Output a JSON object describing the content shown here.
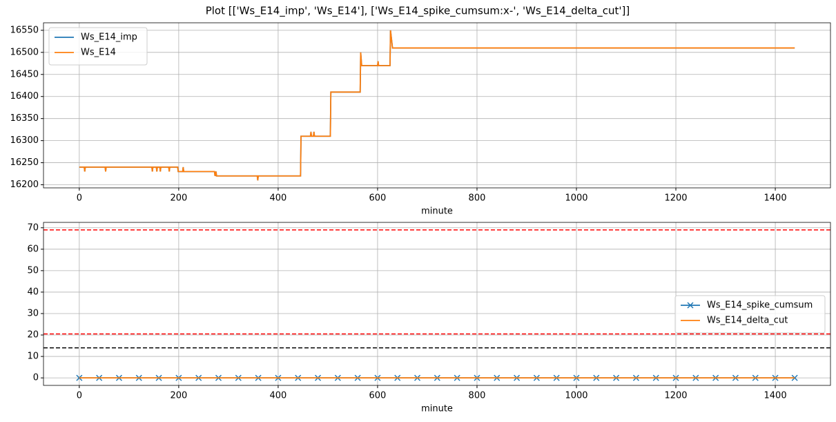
{
  "title": "Plot [['Ws_E14_imp', 'Ws_E14'], ['Ws_E14_spike_cumsum:x-', 'Ws_E14_delta_cut']]",
  "chart_data": [
    {
      "type": "line",
      "x_label": "minute",
      "x": [
        0,
        10,
        11,
        12,
        52,
        53,
        54,
        146,
        147,
        148,
        155,
        156,
        157,
        162,
        163,
        164,
        180,
        181,
        182,
        198,
        199,
        208,
        209,
        210,
        272,
        273,
        275,
        276,
        358,
        359,
        360,
        445,
        446,
        465,
        466,
        467,
        471,
        472,
        473,
        505,
        506,
        565,
        566,
        568,
        600,
        601,
        602,
        625,
        626,
        630,
        1439
      ],
      "series": [
        {
          "name": "Ws_E14_imp",
          "color": "#1f77b4",
          "values": [
            16240,
            16240,
            16230,
            16240,
            16240,
            16230,
            16240,
            16240,
            16230,
            16240,
            16240,
            16230,
            16240,
            16240,
            16230,
            16240,
            16240,
            16230,
            16240,
            16240,
            16230,
            16230,
            16240,
            16230,
            16230,
            16220,
            16230,
            16220,
            16220,
            16210,
            16220,
            16220,
            16310,
            16310,
            16320,
            16310,
            16310,
            16320,
            16310,
            16310,
            16410,
            16410,
            16500,
            16470,
            16470,
            16480,
            16470,
            16470,
            16550,
            16510,
            16510
          ]
        },
        {
          "name": "Ws_E14",
          "color": "#ff7f0e",
          "values": [
            16240,
            16240,
            16230,
            16240,
            16240,
            16230,
            16240,
            16240,
            16230,
            16240,
            16240,
            16230,
            16240,
            16240,
            16230,
            16240,
            16240,
            16230,
            16240,
            16240,
            16230,
            16230,
            16240,
            16230,
            16230,
            16220,
            16230,
            16220,
            16220,
            16210,
            16220,
            16220,
            16310,
            16310,
            16320,
            16310,
            16310,
            16320,
            16310,
            16310,
            16410,
            16410,
            16500,
            16470,
            16470,
            16480,
            16470,
            16470,
            16550,
            16510,
            16510
          ]
        }
      ],
      "xlim": [
        -72,
        1511
      ],
      "xticks": [
        0,
        200,
        400,
        600,
        800,
        1000,
        1200,
        1400
      ],
      "ylim": [
        16193,
        16567
      ],
      "yticks": [
        16200,
        16250,
        16300,
        16350,
        16400,
        16450,
        16500,
        16550
      ],
      "grid": true,
      "legend": "upper left"
    },
    {
      "type": "line",
      "x_label": "minute",
      "x": [
        0,
        40,
        80,
        120,
        160,
        200,
        240,
        280,
        320,
        360,
        400,
        440,
        480,
        520,
        560,
        600,
        640,
        680,
        720,
        760,
        800,
        840,
        880,
        920,
        960,
        1000,
        1040,
        1080,
        1120,
        1160,
        1200,
        1240,
        1280,
        1320,
        1360,
        1400,
        1439
      ],
      "series": [
        {
          "name": "Ws_E14_spike_cumsum",
          "color": "#1f77b4",
          "marker": "x",
          "values": [
            0,
            0,
            0,
            0,
            0,
            0,
            0,
            0,
            0,
            0,
            0,
            0,
            0,
            0,
            0,
            0,
            0,
            0,
            0,
            0,
            0,
            0,
            0,
            0,
            0,
            0,
            0,
            0,
            0,
            0,
            0,
            0,
            0,
            0,
            0,
            0,
            0
          ]
        },
        {
          "name": "Ws_E14_delta_cut",
          "color": "#ff7f0e",
          "values": [
            0,
            0,
            0,
            0,
            0,
            0,
            0,
            0,
            0,
            0,
            0,
            0,
            0,
            0,
            0,
            0,
            0,
            0,
            0,
            0,
            0,
            0,
            0,
            0,
            0,
            0,
            0,
            0,
            0,
            0,
            0,
            0,
            0,
            0,
            0,
            0,
            0
          ]
        }
      ],
      "reference_lines": [
        {
          "value": 69,
          "color": "#ff0000"
        },
        {
          "value": 20.5,
          "color": "#ff0000"
        },
        {
          "value": 14,
          "color": "#000000"
        }
      ],
      "xlim": [
        -72,
        1511
      ],
      "xticks": [
        0,
        200,
        400,
        600,
        800,
        1000,
        1200,
        1400
      ],
      "ylim": [
        -3.5,
        72.5
      ],
      "yticks": [
        0,
        10,
        20,
        30,
        40,
        50,
        60,
        70
      ],
      "grid": true,
      "legend": "center right"
    }
  ]
}
